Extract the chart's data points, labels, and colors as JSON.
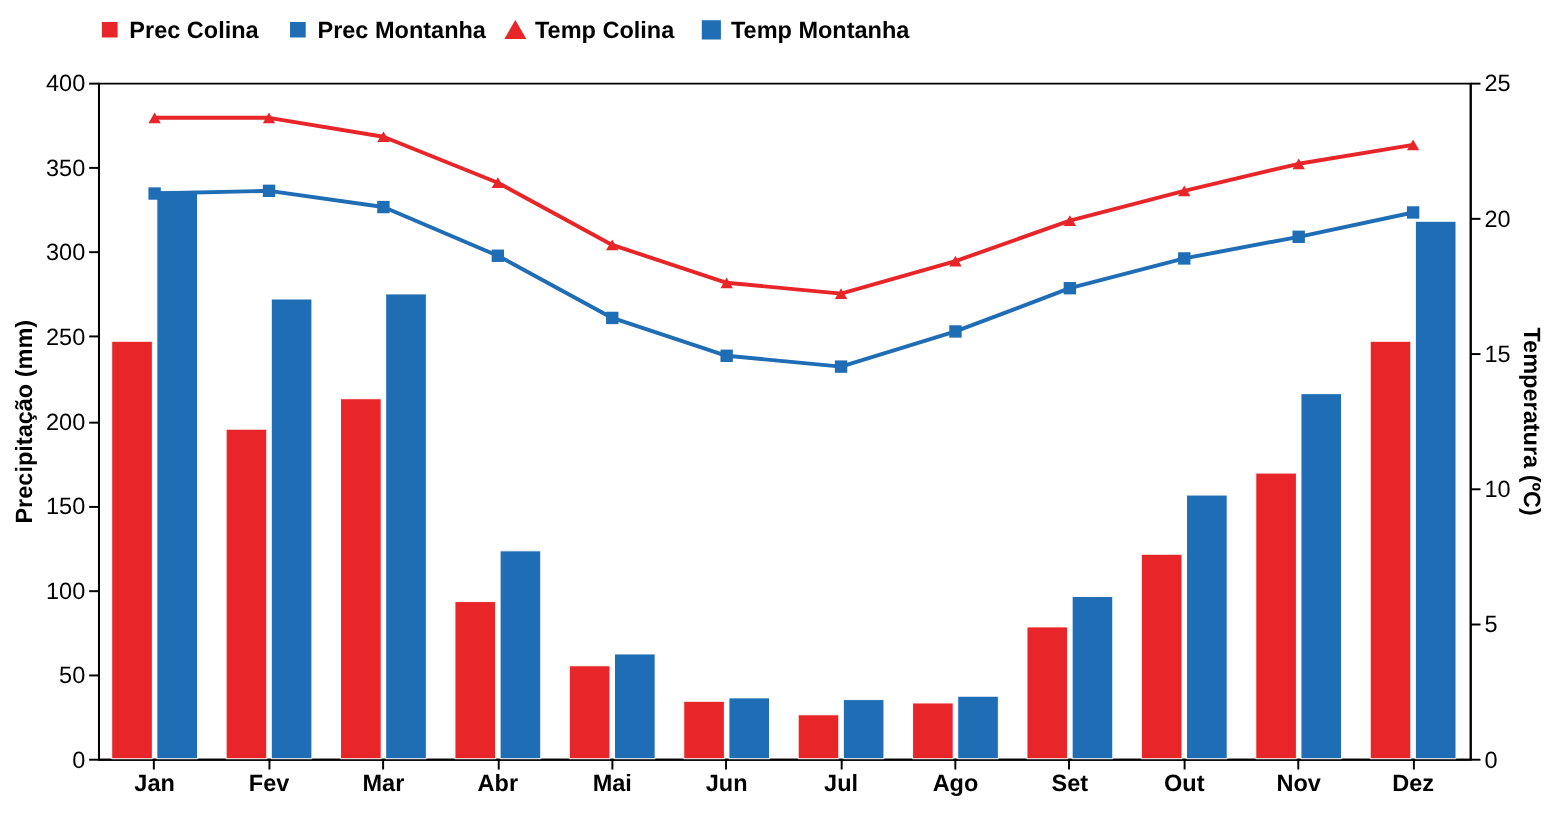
{
  "chart_data": {
    "type": "bar",
    "categories": [
      "Jan",
      "Fev",
      "Mar",
      "Abr",
      "Mai",
      "Jun",
      "Jul",
      "Ago",
      "Set",
      "Out",
      "Nov",
      "Dez"
    ],
    "ylabel": "Precipitação (mm)",
    "y2label": "Temperatura (ºC)",
    "ylim": [
      0,
      400
    ],
    "yticks": [
      0,
      50,
      100,
      150,
      200,
      250,
      300,
      350,
      400
    ],
    "y2lim": [
      0,
      25
    ],
    "y2ticks": [
      0,
      5,
      10,
      15,
      20,
      25
    ],
    "grid": false,
    "legend": "top",
    "series": [
      {
        "name": "Prec Colina",
        "color": "#e8262a",
        "values": [
          247,
          195,
          213,
          93,
          55,
          34,
          26,
          33,
          78,
          121,
          169,
          247
        ]
      },
      {
        "name": "Prec Montanha",
        "color": "#1f6db5",
        "values": [
          336,
          272,
          275,
          123,
          62,
          36,
          35,
          37,
          96,
          156,
          216,
          318
        ]
      },
      {
        "name": "Temp Colina",
        "type": "line",
        "axis": "y2",
        "marker": "triangle",
        "color": "#e8262a",
        "values": [
          23.7,
          23.7,
          23.0,
          21.3,
          19.0,
          17.6,
          17.2,
          18.4,
          19.9,
          21.0,
          22.0,
          22.7
        ]
      },
      {
        "name": "Temp Montanha",
        "type": "line",
        "axis": "y2",
        "marker": "square",
        "color": "#1f6db5",
        "values": [
          20.9,
          21.0,
          20.4,
          18.6,
          16.3,
          14.9,
          14.5,
          15.8,
          17.4,
          18.5,
          19.3,
          20.2
        ]
      }
    ]
  }
}
